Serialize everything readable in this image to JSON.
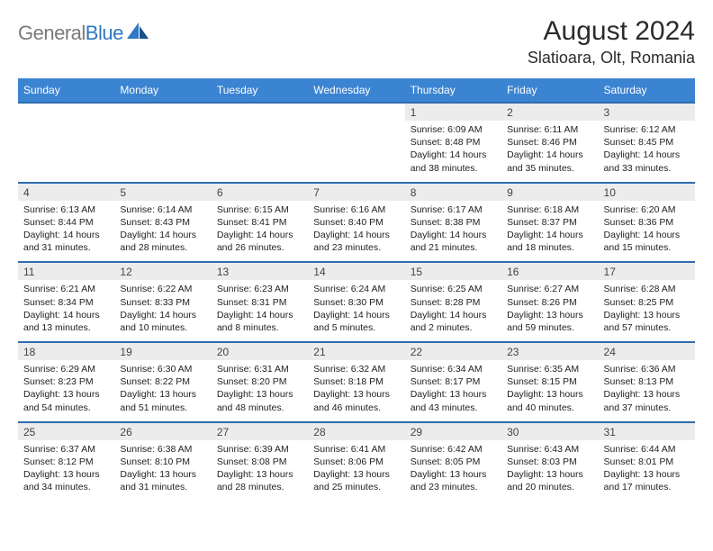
{
  "brand": {
    "part1": "General",
    "part2": "Blue"
  },
  "title": "August 2024",
  "location": "Slatioara, Olt, Romania",
  "header_bg": "#3b84d2",
  "divider_color": "#2f6dad",
  "daynum_bg": "#ececec",
  "text_color": "#222222",
  "weekdays": [
    "Sunday",
    "Monday",
    "Tuesday",
    "Wednesday",
    "Thursday",
    "Friday",
    "Saturday"
  ],
  "weeks": [
    [
      null,
      null,
      null,
      null,
      {
        "n": "1",
        "sr": "6:09 AM",
        "ss": "8:48 PM",
        "dl": "14 hours and 38 minutes."
      },
      {
        "n": "2",
        "sr": "6:11 AM",
        "ss": "8:46 PM",
        "dl": "14 hours and 35 minutes."
      },
      {
        "n": "3",
        "sr": "6:12 AM",
        "ss": "8:45 PM",
        "dl": "14 hours and 33 minutes."
      }
    ],
    [
      {
        "n": "4",
        "sr": "6:13 AM",
        "ss": "8:44 PM",
        "dl": "14 hours and 31 minutes."
      },
      {
        "n": "5",
        "sr": "6:14 AM",
        "ss": "8:43 PM",
        "dl": "14 hours and 28 minutes."
      },
      {
        "n": "6",
        "sr": "6:15 AM",
        "ss": "8:41 PM",
        "dl": "14 hours and 26 minutes."
      },
      {
        "n": "7",
        "sr": "6:16 AM",
        "ss": "8:40 PM",
        "dl": "14 hours and 23 minutes."
      },
      {
        "n": "8",
        "sr": "6:17 AM",
        "ss": "8:38 PM",
        "dl": "14 hours and 21 minutes."
      },
      {
        "n": "9",
        "sr": "6:18 AM",
        "ss": "8:37 PM",
        "dl": "14 hours and 18 minutes."
      },
      {
        "n": "10",
        "sr": "6:20 AM",
        "ss": "8:36 PM",
        "dl": "14 hours and 15 minutes."
      }
    ],
    [
      {
        "n": "11",
        "sr": "6:21 AM",
        "ss": "8:34 PM",
        "dl": "14 hours and 13 minutes."
      },
      {
        "n": "12",
        "sr": "6:22 AM",
        "ss": "8:33 PM",
        "dl": "14 hours and 10 minutes."
      },
      {
        "n": "13",
        "sr": "6:23 AM",
        "ss": "8:31 PM",
        "dl": "14 hours and 8 minutes."
      },
      {
        "n": "14",
        "sr": "6:24 AM",
        "ss": "8:30 PM",
        "dl": "14 hours and 5 minutes."
      },
      {
        "n": "15",
        "sr": "6:25 AM",
        "ss": "8:28 PM",
        "dl": "14 hours and 2 minutes."
      },
      {
        "n": "16",
        "sr": "6:27 AM",
        "ss": "8:26 PM",
        "dl": "13 hours and 59 minutes."
      },
      {
        "n": "17",
        "sr": "6:28 AM",
        "ss": "8:25 PM",
        "dl": "13 hours and 57 minutes."
      }
    ],
    [
      {
        "n": "18",
        "sr": "6:29 AM",
        "ss": "8:23 PM",
        "dl": "13 hours and 54 minutes."
      },
      {
        "n": "19",
        "sr": "6:30 AM",
        "ss": "8:22 PM",
        "dl": "13 hours and 51 minutes."
      },
      {
        "n": "20",
        "sr": "6:31 AM",
        "ss": "8:20 PM",
        "dl": "13 hours and 48 minutes."
      },
      {
        "n": "21",
        "sr": "6:32 AM",
        "ss": "8:18 PM",
        "dl": "13 hours and 46 minutes."
      },
      {
        "n": "22",
        "sr": "6:34 AM",
        "ss": "8:17 PM",
        "dl": "13 hours and 43 minutes."
      },
      {
        "n": "23",
        "sr": "6:35 AM",
        "ss": "8:15 PM",
        "dl": "13 hours and 40 minutes."
      },
      {
        "n": "24",
        "sr": "6:36 AM",
        "ss": "8:13 PM",
        "dl": "13 hours and 37 minutes."
      }
    ],
    [
      {
        "n": "25",
        "sr": "6:37 AM",
        "ss": "8:12 PM",
        "dl": "13 hours and 34 minutes."
      },
      {
        "n": "26",
        "sr": "6:38 AM",
        "ss": "8:10 PM",
        "dl": "13 hours and 31 minutes."
      },
      {
        "n": "27",
        "sr": "6:39 AM",
        "ss": "8:08 PM",
        "dl": "13 hours and 28 minutes."
      },
      {
        "n": "28",
        "sr": "6:41 AM",
        "ss": "8:06 PM",
        "dl": "13 hours and 25 minutes."
      },
      {
        "n": "29",
        "sr": "6:42 AM",
        "ss": "8:05 PM",
        "dl": "13 hours and 23 minutes."
      },
      {
        "n": "30",
        "sr": "6:43 AM",
        "ss": "8:03 PM",
        "dl": "13 hours and 20 minutes."
      },
      {
        "n": "31",
        "sr": "6:44 AM",
        "ss": "8:01 PM",
        "dl": "13 hours and 17 minutes."
      }
    ]
  ],
  "labels": {
    "sunrise": "Sunrise: ",
    "sunset": "Sunset: ",
    "daylight": "Daylight: "
  }
}
